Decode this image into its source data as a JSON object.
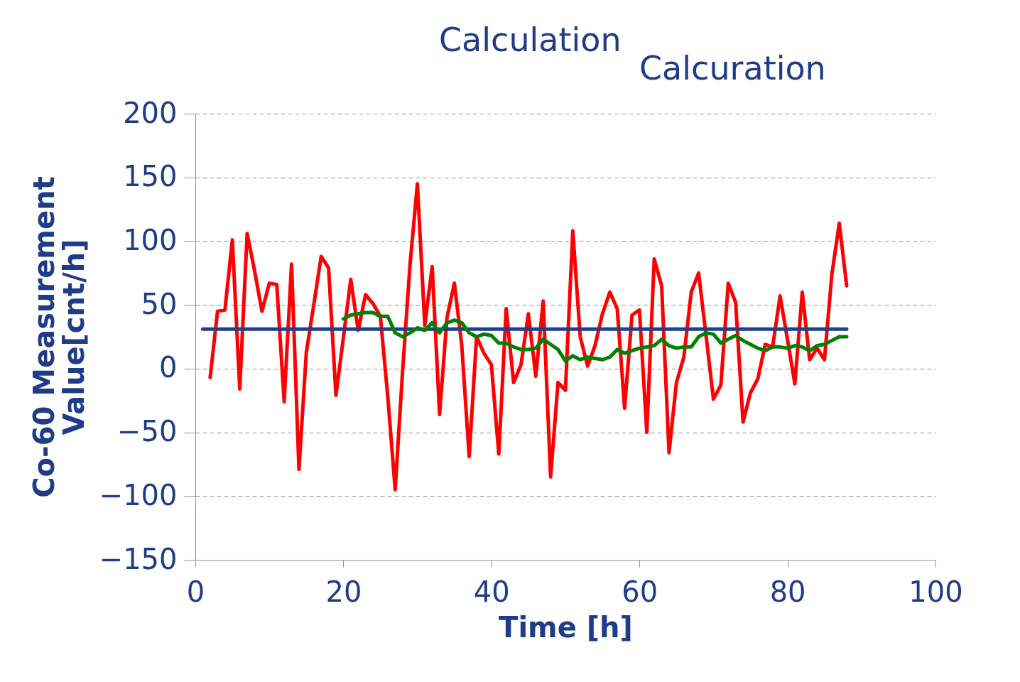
{
  "chart_data": {
    "type": "line",
    "xlabel": "Time [h]",
    "ylabel": "Co-60 Measurement Value[cnt/h]",
    "xlim": [
      0,
      100
    ],
    "ylim": [
      -150,
      200
    ],
    "xticks": [
      0,
      20,
      40,
      60,
      80,
      100
    ],
    "yticks": [
      -150,
      -100,
      -50,
      0,
      50,
      100,
      150,
      200
    ],
    "grid": "y",
    "annotations": [
      "Calculation",
      "Calcuration"
    ],
    "series": [
      {
        "color": "#ff0000",
        "x": [
          2,
          3,
          4,
          5,
          6,
          7,
          8,
          9,
          10,
          11,
          12,
          13,
          14,
          15,
          16,
          17,
          18,
          19,
          20,
          21,
          22,
          23,
          24,
          25,
          26,
          27,
          28,
          29,
          30,
          31,
          32,
          33,
          34,
          35,
          36,
          37,
          38,
          39,
          40,
          41,
          42,
          43,
          44,
          45,
          46,
          47,
          48,
          49,
          50,
          51,
          52,
          53,
          54,
          55,
          56,
          57,
          58,
          59,
          60,
          61,
          62,
          63,
          64,
          65,
          66,
          67,
          68,
          69,
          70,
          71,
          72,
          73,
          74,
          75,
          76,
          77,
          78,
          79,
          80,
          81,
          82,
          83,
          84,
          85,
          86,
          87,
          88
        ],
        "values": [
          -7,
          45,
          46,
          101,
          -16,
          106,
          77,
          45,
          67,
          66,
          -26,
          82,
          -79,
          13,
          50,
          88,
          79,
          -21,
          24,
          70,
          30,
          58,
          51,
          41,
          -22,
          -95,
          -2,
          81,
          145,
          34,
          80,
          -36,
          40,
          67,
          18,
          -69,
          25,
          12,
          3,
          -67,
          47,
          -11,
          3,
          43,
          -6,
          53,
          -85,
          -11,
          -17,
          108,
          25,
          2,
          18,
          43,
          60,
          47,
          -31,
          42,
          46,
          -50,
          86,
          65,
          -66,
          -11,
          9,
          60,
          75,
          26,
          -24,
          -13,
          67,
          52,
          -42,
          -19,
          -8,
          19,
          17,
          57,
          23,
          -12,
          60,
          7,
          16,
          7,
          74,
          114,
          65
        ]
      },
      {
        "color": "#1f3f8f",
        "x": [
          1,
          88
        ],
        "values": [
          31,
          31
        ]
      },
      {
        "color": "#008000",
        "x": [
          20,
          21,
          22,
          23,
          24,
          25,
          26,
          27,
          28,
          29,
          30,
          31,
          32,
          33,
          34,
          35,
          36,
          37,
          38,
          39,
          40,
          41,
          42,
          43,
          44,
          45,
          46,
          47,
          48,
          49,
          50,
          51,
          52,
          53,
          54,
          55,
          56,
          57,
          58,
          59,
          60,
          61,
          62,
          63,
          64,
          65,
          66,
          67,
          68,
          69,
          70,
          71,
          72,
          73,
          74,
          75,
          76,
          77,
          78,
          79,
          80,
          81,
          82,
          83,
          84,
          85,
          86,
          87,
          88
        ],
        "values": [
          39,
          42,
          43,
          44,
          44,
          41,
          41,
          28,
          25,
          28,
          32,
          30,
          36,
          28,
          36,
          38,
          36,
          28,
          25,
          27,
          26,
          20,
          20,
          17,
          15,
          15,
          16,
          23,
          19,
          15,
          6,
          10,
          7,
          9,
          8,
          7,
          9,
          15,
          12,
          14,
          16,
          17,
          18,
          23,
          18,
          16,
          17,
          17,
          25,
          28,
          27,
          20,
          23,
          26,
          22,
          19,
          16,
          14,
          17,
          17,
          16,
          18,
          17,
          14,
          18,
          19,
          22,
          25,
          25
        ]
      }
    ]
  }
}
